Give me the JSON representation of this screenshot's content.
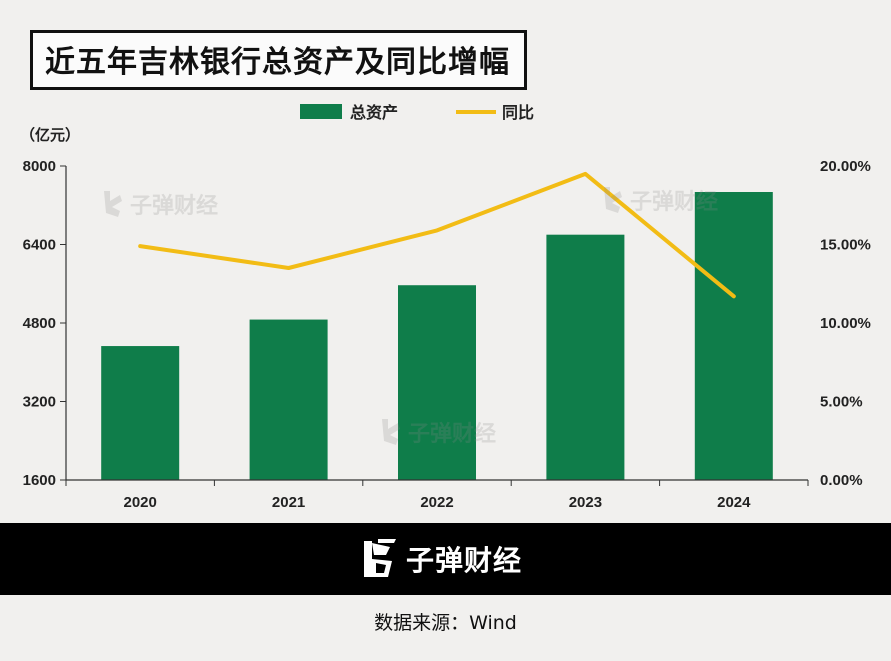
{
  "title": "近五年吉林银行总资产及同比增幅",
  "source_text": "数据来源：Wind",
  "brand_text": "子弹财经",
  "watermark_text": "子弹财经",
  "colors": {
    "bar": "#0f7d4a",
    "line": "#f2bc15",
    "axis": "#333333",
    "footer": "#000000"
  },
  "chart_data": {
    "type": "bar+line",
    "categories": [
      "2020",
      "2021",
      "2022",
      "2023",
      "2024"
    ],
    "y_left_unit_label": "（亿元）",
    "y_left_range": [
      1600,
      8000
    ],
    "y_left_ticks": [
      "8000",
      "6400",
      "4800",
      "3200",
      "1600"
    ],
    "y_right_range": [
      0,
      20
    ],
    "y_right_ticks": [
      "20.00%",
      "15.00%",
      "10.00%",
      "5.00%",
      "0.00%"
    ],
    "series": [
      {
        "name": "总资产",
        "type": "bar",
        "axis": "left",
        "values": [
          4330,
          4870,
          5570,
          6600,
          7470
        ]
      },
      {
        "name": "同比",
        "type": "line",
        "axis": "right",
        "values": [
          14.9,
          13.5,
          15.9,
          19.5,
          11.7
        ]
      }
    ],
    "legend_position": "top-center",
    "grid": false
  }
}
